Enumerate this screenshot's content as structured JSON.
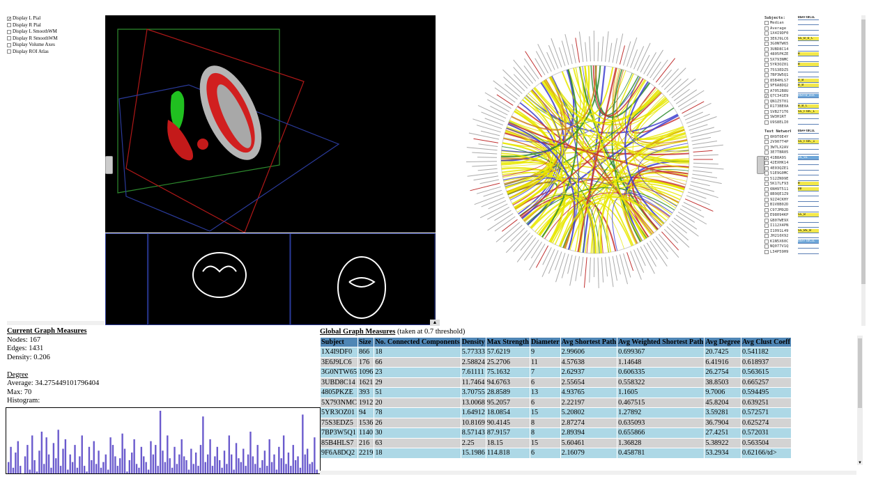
{
  "display_options": [
    {
      "label": "Display L Pial",
      "checked": true
    },
    {
      "label": "Display R Pial",
      "checked": false
    },
    {
      "label": "Display L SmoothWM",
      "checked": false
    },
    {
      "label": "Display R SmoothWM",
      "checked": false
    },
    {
      "label": "Display Volume Axes",
      "checked": false
    },
    {
      "label": "Display ROI Atlas",
      "checked": false
    }
  ],
  "colors": {
    "accent_header": "#4f86b5",
    "row_even": "#add8e6",
    "row_odd": "#d3d3d3",
    "hist_bar": "#6a5acd"
  },
  "subjects_panel": {
    "subjects_label": "Subjects:",
    "subjects_header_tag": "OSFFTDCIL",
    "subjects": [
      {
        "name": "Median",
        "tag": "",
        "style": ""
      },
      {
        "name": "Average",
        "tag": "",
        "style": ""
      },
      {
        "name": "1X4I9DF0",
        "tag": "",
        "style": ""
      },
      {
        "name": "3E6J9LC6",
        "tag": "SS_B_O_C",
        "style": "hl"
      },
      {
        "name": "3G0NTW65",
        "tag": "",
        "style": ""
      },
      {
        "name": "3UBD8C14",
        "tag": "",
        "style": ""
      },
      {
        "name": "4805PKZE",
        "tag": "B",
        "style": "hl"
      },
      {
        "name": "5X793NMC",
        "tag": "",
        "style": ""
      },
      {
        "name": "5YR3OZ01",
        "tag": "B",
        "style": "hl"
      },
      {
        "name": "75S3EDZ5",
        "tag": "",
        "style": ""
      },
      {
        "name": "7BP3W5Q1",
        "tag": "",
        "style": ""
      },
      {
        "name": "85B4HLS7",
        "tag": "B_B",
        "style": "hl"
      },
      {
        "name": "9F6A8DQ2",
        "tag": "B_B",
        "style": "hl"
      },
      {
        "name": "A7052B8U",
        "tag": "",
        "style": ""
      },
      {
        "name": "Q7C341E9",
        "tag": "OSFFD_DIC",
        "style": "sel",
        "checked": true
      },
      {
        "name": "QN1Z5T01",
        "tag": "",
        "style": ""
      },
      {
        "name": "R173BE0A",
        "tag": "B_B_C",
        "style": "hl"
      },
      {
        "name": "SVB271T6",
        "tag": "SS_FTDC_L",
        "style": "hl"
      },
      {
        "name": "SW3H1RT",
        "tag": "",
        "style": ""
      },
      {
        "name": "U9S8ELI0",
        "tag": "",
        "style": ""
      }
    ],
    "test_label": "Test Networks:",
    "test_header_tag": "OSFFTDCIL",
    "tests": [
      {
        "name": "0H9T0E4Y",
        "tag": "",
        "style": ""
      },
      {
        "name": "2V907T4P",
        "tag": "SS_FTDC_I",
        "style": "hl"
      },
      {
        "name": "3W7LX2AV",
        "tag": "",
        "style": ""
      },
      {
        "name": "3E7TBR05",
        "tag": "",
        "style": ""
      },
      {
        "name": "41B8A9S",
        "tag": "SS_SS",
        "style": "sel",
        "checked": true
      },
      {
        "name": "42EXHK14",
        "tag": "",
        "style": ""
      },
      {
        "name": "4E03QZE1",
        "tag": "",
        "style": ""
      },
      {
        "name": "51E9G0MC",
        "tag": "",
        "style": ""
      },
      {
        "name": "512ZN99E",
        "tag": "",
        "style": ""
      },
      {
        "name": "5K17LF93",
        "tag": "B",
        "style": "hl"
      },
      {
        "name": "6NH9T511",
        "tag": "DD",
        "style": "hl"
      },
      {
        "name": "8B9QE1Z9",
        "tag": "",
        "style": ""
      },
      {
        "name": "92Z4CKHY",
        "tag": "",
        "style": ""
      },
      {
        "name": "B1V8B02D",
        "tag": "",
        "style": ""
      },
      {
        "name": "C97JM92D",
        "tag": "",
        "style": ""
      },
      {
        "name": "E98094KP",
        "tag": "SS_B",
        "style": "hl"
      },
      {
        "name": "GB07WE9X",
        "tag": "",
        "style": ""
      },
      {
        "name": "I112X4PN",
        "tag": "",
        "style": ""
      },
      {
        "name": "I1091L49",
        "tag": "SS_BS_B",
        "style": "hl"
      },
      {
        "name": "JH210X92",
        "tag": "",
        "style": ""
      },
      {
        "name": "K1N5X60C",
        "tag": "OSFFTDCIL",
        "style": "sel"
      },
      {
        "name": "NQ077V1Q",
        "tag": "",
        "style": ""
      },
      {
        "name": "L34P59H9",
        "tag": "",
        "style": ""
      }
    ]
  },
  "current_measures": {
    "title": "Current Graph Measures",
    "nodes": "Nodes: 167",
    "edges": "Edges: 1431",
    "density": "Density: 0.206",
    "degree_title": "Degree",
    "average": "Average: 34.275449101796404",
    "max": "Max: 70",
    "histogram_label": "Histogram:"
  },
  "histogram": [
    12,
    28,
    6,
    22,
    34,
    8,
    0,
    18,
    30,
    4,
    40,
    14,
    2,
    24,
    44,
    10,
    38,
    20,
    6,
    32,
    16,
    46,
    8,
    26,
    36,
    4,
    20,
    12,
    30,
    6,
    18,
    40,
    8,
    2,
    28,
    14,
    34,
    10,
    24,
    6,
    12,
    20,
    4,
    38,
    30,
    18,
    8,
    16,
    42,
    26,
    2,
    14,
    22,
    36,
    10,
    6,
    28,
    18,
    12,
    4,
    34,
    20,
    30,
    8,
    66,
    24,
    12,
    40,
    16,
    6,
    28,
    10,
    20,
    36,
    18,
    14,
    4,
    26,
    10,
    22,
    8,
    30,
    60,
    12,
    20,
    36,
    8,
    18,
    28,
    14,
    6,
    24,
    10,
    40,
    20,
    4,
    32,
    16,
    12,
    26,
    8,
    20,
    44,
    18,
    10,
    30,
    6,
    14,
    24,
    8,
    36,
    12,
    20,
    4,
    28,
    16,
    40,
    10,
    22,
    8,
    30,
    14,
    18,
    6,
    62,
    20,
    26,
    10,
    12,
    38,
    4
  ],
  "global_measures": {
    "title": "Global Graph Measures",
    "subtitle": "(taken at 0.7 threshold)",
    "columns": [
      "Subject",
      "Size",
      "No. Connected Components",
      "Density",
      "Max Strength",
      "Diameter",
      "Avg Shortest Path",
      "Avg Weighted Shortest Path",
      "Avg Degree",
      "Avg Clust Coeff"
    ],
    "rows": [
      [
        "1X4I9DF0",
        "866",
        "18",
        "5.77333",
        "57.6219",
        "9",
        "2.99606",
        "0.699367",
        "20.7425",
        "0.541182"
      ],
      [
        "3E6J9LC6",
        "176",
        "66",
        "2.58824",
        "25.2706",
        "11",
        "4.57638",
        "1.14648",
        "6.41916",
        "0.618937"
      ],
      [
        "3G0NTW65",
        "1096",
        "23",
        "7.61111",
        "75.1632",
        "7",
        "2.62937",
        "0.606335",
        "26.2754",
        "0.563615"
      ],
      [
        "3UBD8C14",
        "1621",
        "29",
        "11.7464",
        "94.6763",
        "6",
        "2.55654",
        "0.558322",
        "38.8503",
        "0.665257"
      ],
      [
        "4805PKZE",
        "393",
        "51",
        "3.70755",
        "28.8589",
        "13",
        "4.93765",
        "1.1605",
        "9.7006",
        "0.594495"
      ],
      [
        "5X793NMC",
        "1912",
        "20",
        "13.0068",
        "95.2057",
        "6",
        "2.22197",
        "0.467515",
        "45.8204",
        "0.639251"
      ],
      [
        "5YR3OZ01",
        "94",
        "78",
        "1.64912",
        "18.0854",
        "15",
        "5.20802",
        "1.27892",
        "3.59281",
        "0.572571"
      ],
      [
        "75S3EDZ5",
        "1536",
        "26",
        "10.8169",
        "90.4145",
        "8",
        "2.87274",
        "0.635093",
        "36.7904",
        "0.625274"
      ],
      [
        "7BP3W5Q1",
        "1140",
        "30",
        "8.57143",
        "87.9157",
        "8",
        "2.89394",
        "0.655866",
        "27.4251",
        "0.572031"
      ],
      [
        "85B4HLS7",
        "216",
        "63",
        "2.25",
        "18.15",
        "15",
        "5.60461",
        "1.36828",
        "5.38922",
        "0.563504"
      ],
      [
        "9F6A8DQ2",
        "2219",
        "18",
        "15.1986",
        "114.818",
        "6",
        "2.16079",
        "0.458781",
        "53.2934",
        "0.62166/td>"
      ]
    ]
  }
}
